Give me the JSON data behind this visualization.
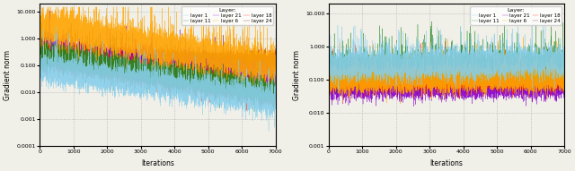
{
  "title": "Layer:",
  "xlabel": "Iterations",
  "ylabel": "Gradient norm",
  "xlim": [
    0,
    7000
  ],
  "xticks": [
    0,
    1000,
    2000,
    3000,
    4000,
    5000,
    6000,
    7000
  ],
  "layers": [
    "1",
    "6",
    "11",
    "18",
    "21",
    "24"
  ],
  "layer_colors": {
    "1": "#87ceeb",
    "6": "#ffa500",
    "11": "#228b22",
    "18": "#ff2200",
    "21": "#8b00cc",
    "24": "#8b1a1a"
  },
  "layer_labels": {
    "1": "layer 1",
    "6": "layer 6",
    "11": "layer 11",
    "18": "layer 18",
    "21": "layer 21",
    "24": "layer 24"
  },
  "background_color": "#f0efe8",
  "figsize": [
    6.4,
    1.91
  ],
  "dpi": 100
}
